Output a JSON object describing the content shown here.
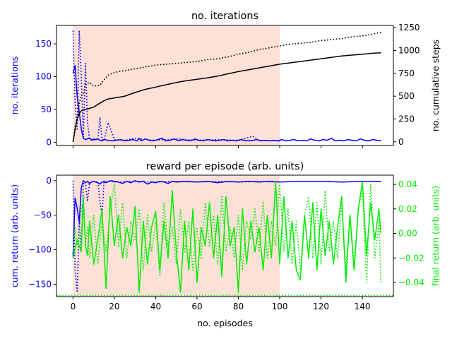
{
  "chart_data": [
    {
      "type": "line",
      "title": "no. iterations",
      "xlabel": "",
      "ylabel": "no. iterations",
      "ylabel_right": "no. cumulative steps",
      "xlim": [
        -8,
        155
      ],
      "ylim": [
        -5,
        178
      ],
      "ylim_right": [
        -40,
        1275
      ],
      "x_ticks": [
        0,
        20,
        40,
        60,
        80,
        100,
        120,
        140
      ],
      "y_ticks": [
        0,
        50,
        100,
        150
      ],
      "y_ticks_right": [
        0,
        250,
        500,
        750,
        1000,
        1250
      ],
      "shaded_region": [
        0,
        100
      ],
      "colors": {
        "iterations": "#0000ff",
        "cumulative": "#000000",
        "shade": "#fde0d6"
      },
      "series": [
        {
          "name": "no. iterations (solid)",
          "axis": "left",
          "style": "solid",
          "color": "#0000ff",
          "x": [
            0,
            1,
            2,
            3,
            4,
            5,
            6,
            7,
            8,
            9,
            10,
            11,
            12,
            13,
            14,
            15,
            17,
            19,
            21,
            23,
            25,
            27,
            29,
            31,
            32,
            33,
            35,
            37,
            39,
            41,
            43,
            45,
            47,
            49,
            51,
            53,
            55,
            57,
            59,
            61,
            63,
            65,
            67,
            69,
            71,
            73,
            75,
            77,
            79,
            81,
            83,
            85,
            87,
            89,
            91,
            93,
            95,
            97,
            99,
            101,
            103,
            105,
            107,
            109,
            111,
            113,
            115,
            117,
            119,
            121,
            123,
            125,
            127,
            129,
            131,
            133,
            135,
            137,
            139,
            141,
            143,
            145,
            147,
            149
          ],
          "y": [
            105,
            117,
            70,
            46,
            20,
            6,
            4,
            5,
            6,
            3,
            5,
            4,
            5,
            3,
            2,
            4,
            3,
            2,
            3,
            4,
            2,
            3,
            4,
            2,
            6,
            2,
            5,
            3,
            2,
            4,
            6,
            2,
            3,
            5,
            2,
            4,
            3,
            2,
            5,
            3,
            2,
            4,
            3,
            2,
            3,
            4,
            2,
            3,
            2,
            4,
            3,
            2,
            3,
            4,
            2,
            3,
            2,
            3,
            2,
            4,
            2,
            3,
            4,
            2,
            3,
            2,
            5,
            3,
            2,
            4,
            3,
            6,
            2,
            3,
            2,
            4,
            3,
            2,
            5,
            3,
            2,
            4,
            3,
            2
          ]
        },
        {
          "name": "no. iterations (dotted)",
          "axis": "left",
          "style": "dotted",
          "color": "#0000ff",
          "x": [
            0,
            1,
            2,
            3,
            4,
            5,
            6,
            7,
            8,
            9,
            10,
            11,
            12,
            13,
            14,
            15,
            17,
            20,
            25,
            30,
            35,
            40,
            50,
            60,
            70,
            80,
            87,
            90,
            100
          ],
          "y": [
            170,
            60,
            20,
            170,
            100,
            8,
            120,
            30,
            5,
            4,
            3,
            5,
            3,
            38,
            4,
            3,
            30,
            4,
            3,
            6,
            4,
            3,
            5,
            3,
            4,
            3,
            9,
            3,
            2
          ]
        },
        {
          "name": "no. cumulative steps (solid)",
          "axis": "right",
          "style": "solid",
          "color": "#000000",
          "x": [
            0,
            1,
            2,
            3,
            4,
            5,
            7,
            10,
            12,
            15,
            17,
            20,
            25,
            30,
            35,
            40,
            45,
            50,
            55,
            60,
            65,
            70,
            75,
            80,
            85,
            90,
            95,
            100,
            105,
            110,
            115,
            120,
            125,
            130,
            135,
            140,
            145,
            149
          ],
          "y": [
            0,
            130,
            250,
            310,
            340,
            350,
            360,
            380,
            410,
            450,
            470,
            480,
            500,
            540,
            575,
            600,
            625,
            650,
            670,
            685,
            700,
            720,
            745,
            770,
            790,
            810,
            830,
            850,
            865,
            880,
            895,
            910,
            925,
            940,
            950,
            960,
            970,
            975
          ]
        },
        {
          "name": "no. cumulative steps (dotted)",
          "axis": "right",
          "style": "dotted",
          "color": "#000000",
          "x": [
            0,
            1,
            2,
            3,
            4,
            5,
            6,
            7,
            8,
            10,
            13,
            15,
            17,
            20,
            25,
            30,
            35,
            40,
            45,
            50,
            55,
            60,
            65,
            70,
            75,
            80,
            85,
            90,
            95,
            100,
            105,
            110,
            115,
            120,
            125,
            130,
            135,
            140,
            145,
            149
          ],
          "y": [
            0,
            170,
            250,
            420,
            510,
            520,
            630,
            640,
            650,
            610,
            620,
            680,
            730,
            760,
            780,
            800,
            820,
            840,
            850,
            860,
            870,
            880,
            900,
            910,
            930,
            960,
            980,
            1010,
            1030,
            1050,
            1070,
            1080,
            1090,
            1110,
            1120,
            1130,
            1150,
            1160,
            1180,
            1200
          ]
        }
      ]
    },
    {
      "type": "line",
      "title": "reward per episode (arb. units)",
      "xlabel": "no. episodes",
      "ylabel": "cum. return (arb. units)",
      "ylabel_right": "final return (arb. units)",
      "xlim": [
        -8,
        155
      ],
      "ylim": [
        -168,
        8
      ],
      "ylim_right": [
        -0.0515,
        0.0475
      ],
      "x_ticks": [
        0,
        20,
        40,
        60,
        80,
        100,
        120,
        140
      ],
      "x_tick_labels": [
        "0",
        "20",
        "40",
        "60",
        "80",
        "100",
        "120",
        "140"
      ],
      "y_ticks": [
        0,
        -50,
        -100,
        -150
      ],
      "y_ticks_right": [
        0.04,
        0.02,
        0.0,
        -0.02,
        -0.04
      ],
      "y_tick_labels_right": [
        "0.04",
        "0.02",
        "0.00",
        "−0.02",
        "−0.04"
      ],
      "shaded_region": [
        0,
        100
      ],
      "colors": {
        "cum_return": "#0000ff",
        "final_return": "#00ee00",
        "shade": "#fde0d6"
      },
      "series": [
        {
          "name": "cum. return (solid)",
          "axis": "left",
          "style": "solid",
          "color": "#0000ff",
          "x": [
            0,
            1,
            2,
            3,
            4,
            5,
            6,
            7,
            8,
            9,
            10,
            11,
            12,
            13,
            14,
            15,
            16,
            18,
            20,
            22,
            24,
            26,
            28,
            30,
            32,
            34,
            36,
            38,
            40,
            42,
            44,
            46,
            48,
            50,
            55,
            60,
            65,
            70,
            75,
            80,
            85,
            90,
            95,
            100,
            110,
            120,
            130,
            140,
            149
          ],
          "y": [
            -110,
            -25,
            -40,
            -60,
            -10,
            0,
            -3,
            -1,
            -4,
            -2,
            -1,
            -2,
            -3,
            -5,
            -2,
            -1,
            -3,
            0,
            -1,
            -2,
            -4,
            -1,
            -3,
            0,
            -2,
            -1,
            -5,
            -2,
            -3,
            -1,
            -2,
            -4,
            -1,
            -2,
            -1,
            -2,
            -1,
            -3,
            -1,
            -2,
            -1,
            -2,
            -1,
            -2,
            -1,
            -1,
            -2,
            -1,
            -1
          ]
        },
        {
          "name": "cum. return (dotted)",
          "axis": "left",
          "style": "dotted",
          "color": "#0000ff",
          "x": [
            0,
            1,
            2,
            3,
            4,
            5,
            6,
            7,
            8,
            9,
            10,
            11,
            12,
            13,
            14,
            15,
            18,
            20,
            30,
            40,
            50,
            60,
            70,
            80,
            90,
            100
          ],
          "y": [
            0,
            -130,
            -160,
            -60,
            -100,
            -5,
            -2,
            -30,
            -3,
            -2,
            -1,
            -2,
            -1,
            -30,
            -50,
            -2,
            -1,
            -2,
            -1,
            -2,
            -1,
            -2,
            -1,
            -2,
            -1,
            -2
          ]
        },
        {
          "name": "final return (solid)",
          "axis": "right",
          "style": "solid",
          "color": "#00ee00",
          "x": [
            0,
            2,
            4,
            5,
            6,
            7,
            8,
            10,
            12,
            14,
            16,
            18,
            20,
            22,
            24,
            26,
            28,
            30,
            32,
            34,
            36,
            38,
            40,
            42,
            44,
            46,
            48,
            50,
            52,
            54,
            56,
            58,
            60,
            62,
            64,
            66,
            68,
            70,
            72,
            74,
            76,
            78,
            80,
            82,
            84,
            86,
            88,
            90,
            92,
            94,
            96,
            98,
            100,
            102,
            104,
            106,
            108,
            110,
            112,
            114,
            116,
            118,
            120,
            122,
            124,
            126,
            128,
            130,
            132,
            134,
            136,
            138,
            140,
            142,
            144,
            146,
            148,
            149
          ],
          "y": [
            -0.02,
            -0.005,
            -0.015,
            0.03,
            -0.01,
            -0.018,
            0.01,
            -0.025,
            -0.005,
            0.02,
            -0.045,
            0.03,
            -0.01,
            0.015,
            -0.02,
            0.005,
            -0.01,
            0.022,
            -0.048,
            0.01,
            -0.025,
            0.005,
            0.018,
            -0.03,
            0.01,
            -0.02,
            0.035,
            -0.015,
            -0.048,
            0.01,
            -0.03,
            0.02,
            -0.04,
            0.005,
            -0.01,
            0.025,
            -0.02,
            0.015,
            -0.035,
            0.03,
            -0.01,
            0.005,
            -0.048,
            0.02,
            -0.025,
            0.01,
            -0.015,
            0.005,
            -0.03,
            0.015,
            -0.02,
            0.042,
            -0.025,
            0.03,
            -0.02,
            0.01,
            -0.03,
            -0.038,
            0.015,
            -0.02,
            0.025,
            -0.03,
            0.02,
            -0.018,
            0.01,
            -0.025,
            0.005,
            0.03,
            -0.04,
            0.015,
            -0.03,
            0.02,
            0.042,
            -0.018,
            0.025,
            -0.005,
            0.02,
            0.0
          ]
        },
        {
          "name": "final return (dotted)",
          "axis": "right",
          "style": "dotted",
          "color": "#00ee00",
          "x": [
            0,
            1,
            2,
            3,
            4,
            5,
            6,
            7,
            8,
            10,
            12,
            14,
            16,
            18,
            20,
            22,
            24,
            26,
            28,
            30,
            32,
            34,
            36,
            38,
            40,
            42,
            44,
            46,
            48,
            50,
            52,
            54,
            56,
            58,
            60,
            62,
            64,
            66,
            68,
            70,
            72,
            74,
            76,
            78,
            80,
            82,
            84,
            86,
            88,
            90,
            92,
            94,
            96,
            98,
            100,
            102,
            104,
            106,
            108,
            110,
            112,
            114,
            116,
            118,
            120,
            122,
            124,
            126,
            128,
            130,
            132,
            134,
            136,
            138,
            140,
            142,
            144,
            146,
            148,
            149
          ],
          "y": [
            -0.015,
            0.005,
            -0.01,
            -0.005,
            0.02,
            0.025,
            -0.01,
            0.005,
            -0.02,
            0.015,
            -0.025,
            0.01,
            -0.015,
            0.02,
            0.04,
            -0.01,
            0.025,
            -0.02,
            0.01,
            -0.005,
            0.02,
            -0.03,
            0.015,
            -0.015,
            0.01,
            -0.035,
            0.025,
            -0.01,
            0.005,
            -0.025,
            0.02,
            -0.015,
            0.01,
            -0.03,
            0.005,
            -0.02,
            0.025,
            -0.01,
            0.015,
            -0.025,
            0.03,
            -0.015,
            0.005,
            -0.02,
            0.015,
            -0.03,
            0.01,
            -0.005,
            0.02,
            -0.015,
            0.025,
            -0.02,
            0.01,
            -0.01,
            0.04,
            -0.015,
            0.02,
            -0.025,
            0.01,
            -0.03,
            0.015,
            0.03,
            -0.02,
            0.025,
            -0.025,
            0.035,
            -0.015,
            0.01,
            -0.02,
            0.025,
            -0.03,
            0.015,
            -0.025,
            0.02,
            0.035,
            -0.04,
            0.04,
            -0.02,
            0.01,
            -0.04
          ]
        },
        {
          "name": "final return reference line",
          "axis": "right",
          "style": "dotted",
          "color": "#00ee00",
          "x": [
            -8,
            155
          ],
          "y": [
            -0.0505,
            -0.0505
          ]
        }
      ]
    }
  ]
}
